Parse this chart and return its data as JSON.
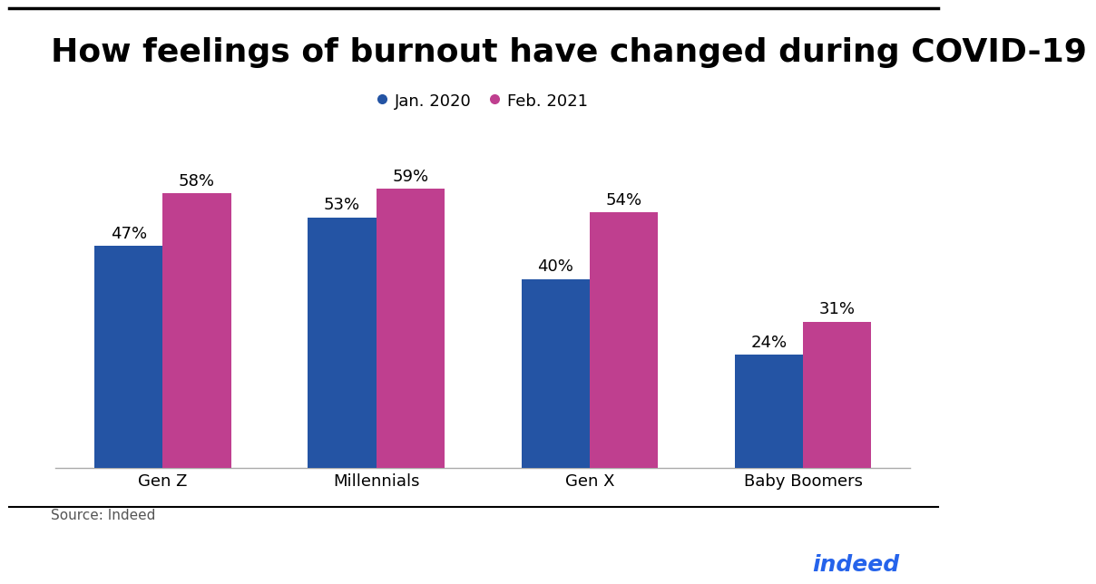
{
  "title": "How feelings of burnout have changed during COVID-19",
  "categories": [
    "Gen Z",
    "Millennials",
    "Gen X",
    "Baby Boomers"
  ],
  "jan2020": [
    47,
    53,
    40,
    24
  ],
  "feb2021": [
    58,
    59,
    54,
    31
  ],
  "jan_color": "#2454a4",
  "feb_color": "#bf3f8f",
  "jan_label": "Jan. 2020",
  "feb_label": "Feb. 2021",
  "source_text": "Source: Indeed",
  "indeed_text": "indeed",
  "indeed_color": "#2563EB",
  "background_color": "#ffffff",
  "bar_width": 0.32,
  "ylim": [
    0,
    75
  ],
  "title_fontsize": 26,
  "tick_fontsize": 13,
  "annot_fontsize": 13,
  "source_fontsize": 11,
  "legend_fontsize": 13
}
